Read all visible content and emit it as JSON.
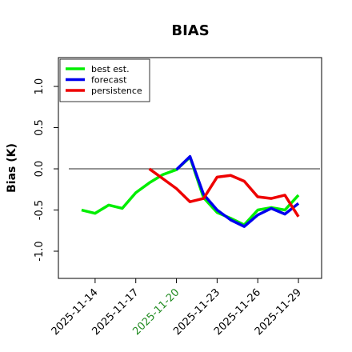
{
  "chart_data": {
    "type": "line",
    "title": "BIAS",
    "ylabel": "Bias (K)",
    "x": [
      "2025-11-13",
      "2025-11-14",
      "2025-11-15",
      "2025-11-16",
      "2025-11-17",
      "2025-11-18",
      "2025-11-19",
      "2025-11-20",
      "2025-11-21",
      "2025-11-22",
      "2025-11-23",
      "2025-11-24",
      "2025-11-25",
      "2025-11-26",
      "2025-11-27",
      "2025-11-28",
      "2025-11-29"
    ],
    "series": [
      {
        "name": "best est.",
        "color": "#00ee00",
        "values": [
          -0.5,
          -0.54,
          -0.44,
          -0.48,
          -0.29,
          -0.17,
          -0.07,
          -0.01,
          0.14,
          -0.35,
          -0.53,
          -0.6,
          -0.68,
          -0.5,
          -0.47,
          -0.5,
          -0.32
        ]
      },
      {
        "name": "forecast",
        "color": "#0000ee",
        "values": [
          null,
          null,
          null,
          null,
          null,
          null,
          null,
          -0.01,
          0.15,
          -0.31,
          -0.5,
          -0.62,
          -0.7,
          -0.56,
          -0.48,
          -0.55,
          -0.42
        ]
      },
      {
        "name": "persistence",
        "color": "#ee0000",
        "values": [
          null,
          null,
          null,
          null,
          null,
          0.0,
          -0.12,
          -0.24,
          -0.4,
          -0.36,
          -0.1,
          -0.08,
          -0.15,
          -0.34,
          -0.36,
          -0.32,
          -0.58
        ]
      }
    ],
    "xlim": [
      "2025-11-11T07:00",
      "2025-11-30T17:00"
    ],
    "xticks": [
      "2025-11-14",
      "2025-11-17",
      "2025-11-20",
      "2025-11-23",
      "2025-11-26",
      "2025-11-29"
    ],
    "xtick_colors": [
      "#000000",
      "#000000",
      "#228b22",
      "#000000",
      "#000000",
      "#000000"
    ],
    "ylim": [
      -1.33,
      1.35
    ],
    "yticks": [
      {
        "value": -1,
        "label": "-1.0"
      },
      {
        "value": -0.5,
        "label": "-0.5"
      },
      {
        "value": 0,
        "label": "0.0"
      },
      {
        "value": 0.5,
        "label": "0.5"
      },
      {
        "value": 1,
        "label": "1.0"
      }
    ],
    "hline": 0,
    "hline_color": "#555555",
    "legend": "upper left"
  }
}
